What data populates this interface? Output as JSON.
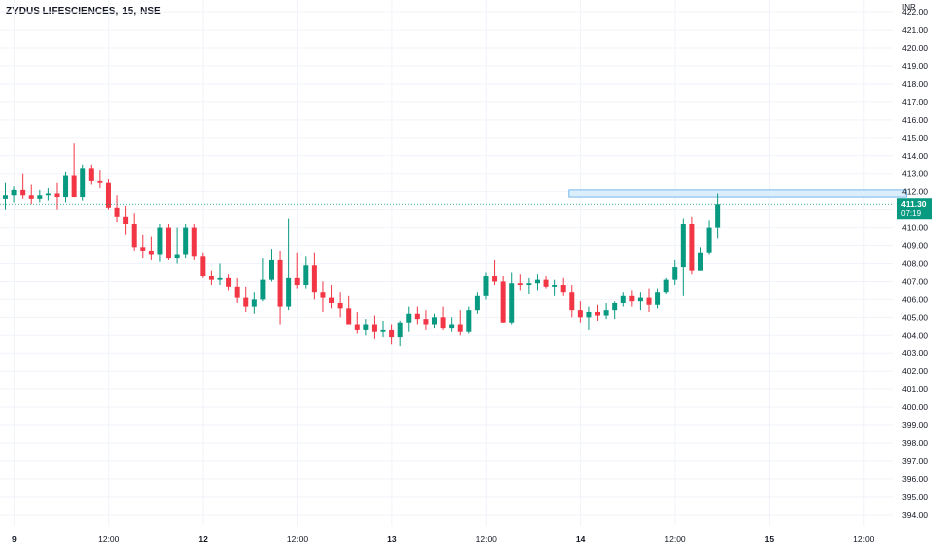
{
  "header": {
    "symbol": "ZYDUS LIFESCIENCES,",
    "interval": "15,",
    "exchange": "NSE"
  },
  "colors": {
    "up": "#089981",
    "down": "#f23645",
    "grid": "#f0f3fa",
    "axis_text": "#131722",
    "price_line": "#089981",
    "highlight_fill": "#dbeefb",
    "highlight_stroke": "#5aa8e6"
  },
  "chart_data": {
    "type": "candlestick",
    "currency_label": "INR",
    "y_ticks": [
      "422.00",
      "421.00",
      "420.00",
      "419.00",
      "418.00",
      "417.00",
      "416.00",
      "415.00",
      "414.00",
      "413.00",
      "412.00",
      "411.00",
      "410.00",
      "409.00",
      "408.00",
      "407.00",
      "406.00",
      "405.00",
      "404.00",
      "403.00",
      "402.00",
      "401.00",
      "400.00",
      "399.00",
      "398.00",
      "397.00",
      "396.00",
      "395.00",
      "394.00"
    ],
    "ylim": [
      393.6,
      422.9
    ],
    "x_labels": [
      {
        "label": "9",
        "bold": true,
        "pos": 1.5
      },
      {
        "label": "12:00",
        "bold": false,
        "pos": 12.5
      },
      {
        "label": "12",
        "bold": true,
        "pos": 23.5
      },
      {
        "label": "12:00",
        "bold": false,
        "pos": 34.5
      },
      {
        "label": "13",
        "bold": true,
        "pos": 45.5
      },
      {
        "label": "12:00",
        "bold": false,
        "pos": 56.5
      },
      {
        "label": "14",
        "bold": true,
        "pos": 67.5
      },
      {
        "label": "12:00",
        "bold": false,
        "pos": 78.5
      },
      {
        "label": "15",
        "bold": true,
        "pos": 89.5
      },
      {
        "label": "12:00",
        "bold": false,
        "pos": 100.5
      }
    ],
    "candles": [
      [
        411.6,
        412.5,
        411.0,
        411.8
      ],
      [
        411.8,
        412.3,
        411.4,
        412.1
      ],
      [
        412.1,
        413.0,
        411.6,
        411.8
      ],
      [
        411.8,
        412.4,
        411.3,
        411.6
      ],
      [
        411.6,
        412.1,
        411.4,
        411.8
      ],
      [
        411.8,
        412.2,
        411.5,
        411.9
      ],
      [
        411.9,
        412.5,
        411.0,
        411.7
      ],
      [
        411.7,
        413.1,
        411.4,
        412.9
      ],
      [
        412.9,
        414.7,
        411.7,
        411.7
      ],
      [
        411.7,
        413.5,
        411.5,
        413.3
      ],
      [
        413.3,
        413.5,
        412.4,
        412.6
      ],
      [
        412.6,
        413.2,
        412.2,
        412.5
      ],
      [
        412.5,
        412.7,
        411.0,
        411.1
      ],
      [
        411.1,
        411.8,
        410.3,
        410.6
      ],
      [
        410.6,
        411.2,
        409.6,
        410.2
      ],
      [
        410.2,
        410.8,
        408.7,
        408.9
      ],
      [
        408.9,
        409.6,
        408.3,
        408.7
      ],
      [
        408.7,
        409.5,
        408.2,
        408.5
      ],
      [
        408.5,
        410.2,
        408.1,
        410.0
      ],
      [
        410.0,
        410.2,
        408.2,
        408.3
      ],
      [
        408.3,
        410.0,
        408.0,
        408.5
      ],
      [
        408.5,
        410.2,
        408.3,
        410.0
      ],
      [
        410.0,
        410.2,
        408.2,
        408.4
      ],
      [
        408.4,
        408.6,
        407.2,
        407.3
      ],
      [
        407.3,
        407.6,
        406.8,
        407.1
      ],
      [
        407.1,
        408.0,
        406.8,
        407.2
      ],
      [
        407.2,
        407.4,
        406.5,
        406.7
      ],
      [
        406.7,
        407.2,
        405.8,
        406.1
      ],
      [
        406.1,
        406.7,
        405.3,
        405.6
      ],
      [
        405.6,
        406.4,
        405.2,
        406.0
      ],
      [
        406.0,
        408.3,
        405.9,
        407.1
      ],
      [
        407.1,
        408.8,
        407.0,
        408.2
      ],
      [
        408.2,
        408.7,
        404.6,
        405.6
      ],
      [
        405.6,
        410.5,
        405.4,
        407.2
      ],
      [
        407.2,
        408.6,
        406.6,
        406.8
      ],
      [
        406.8,
        408.4,
        406.6,
        407.9
      ],
      [
        407.9,
        408.6,
        406.0,
        406.4
      ],
      [
        406.4,
        407.0,
        405.3,
        406.1
      ],
      [
        406.1,
        406.8,
        405.5,
        405.8
      ],
      [
        405.8,
        406.4,
        405.0,
        405.5
      ],
      [
        405.5,
        406.2,
        404.6,
        404.6
      ],
      [
        404.6,
        405.3,
        404.1,
        404.3
      ],
      [
        404.3,
        404.9,
        404.0,
        404.6
      ],
      [
        404.6,
        405.1,
        403.8,
        404.2
      ],
      [
        404.2,
        404.8,
        403.9,
        404.3
      ],
      [
        404.3,
        404.6,
        403.5,
        403.9
      ],
      [
        403.9,
        404.8,
        403.4,
        404.7
      ],
      [
        404.7,
        405.6,
        404.2,
        405.2
      ],
      [
        405.2,
        405.6,
        404.6,
        404.9
      ],
      [
        404.9,
        405.4,
        404.3,
        404.6
      ],
      [
        404.6,
        405.2,
        404.4,
        405.0
      ],
      [
        405.0,
        405.6,
        404.3,
        404.4
      ],
      [
        404.4,
        405.0,
        404.2,
        404.6
      ],
      [
        404.6,
        405.4,
        404.0,
        404.2
      ],
      [
        404.2,
        405.6,
        404.1,
        405.4
      ],
      [
        405.4,
        406.4,
        405.2,
        406.2
      ],
      [
        406.2,
        407.5,
        406.0,
        407.3
      ],
      [
        407.3,
        408.2,
        406.8,
        407.0
      ],
      [
        407.0,
        407.3,
        404.7,
        404.7
      ],
      [
        404.7,
        407.5,
        404.6,
        406.9
      ],
      [
        406.9,
        407.4,
        406.5,
        406.8
      ],
      [
        406.8,
        407.2,
        406.3,
        406.9
      ],
      [
        406.9,
        407.4,
        406.5,
        407.1
      ],
      [
        407.1,
        407.3,
        406.6,
        406.7
      ],
      [
        406.7,
        407.1,
        406.2,
        406.8
      ],
      [
        406.8,
        407.2,
        406.2,
        406.4
      ],
      [
        406.4,
        406.8,
        405.0,
        405.4
      ],
      [
        405.4,
        405.9,
        404.7,
        405.0
      ],
      [
        405.0,
        405.6,
        404.3,
        405.3
      ],
      [
        405.3,
        405.7,
        404.8,
        405.1
      ],
      [
        405.1,
        405.8,
        404.9,
        405.4
      ],
      [
        405.4,
        405.9,
        404.9,
        405.8
      ],
      [
        405.8,
        406.4,
        405.6,
        406.2
      ],
      [
        406.2,
        406.5,
        405.6,
        405.9
      ],
      [
        405.9,
        406.4,
        405.4,
        406.1
      ],
      [
        406.1,
        406.6,
        405.3,
        405.7
      ],
      [
        405.7,
        406.6,
        405.5,
        406.4
      ],
      [
        406.4,
        407.2,
        406.3,
        407.1
      ],
      [
        407.1,
        408.2,
        406.8,
        407.8
      ],
      [
        407.8,
        410.5,
        406.2,
        410.2
      ],
      [
        410.2,
        410.6,
        407.4,
        407.6
      ],
      [
        407.6,
        408.9,
        407.6,
        408.6
      ],
      [
        408.6,
        410.4,
        408.5,
        410.0
      ],
      [
        410.0,
        411.9,
        409.4,
        411.3
      ]
    ],
    "last_price": "411.30",
    "last_price_value": 411.3,
    "countdown": "07:19",
    "highlight_zone": {
      "from_bar": 66,
      "to_bar": 105,
      "low": 411.7,
      "high": 412.1
    }
  }
}
